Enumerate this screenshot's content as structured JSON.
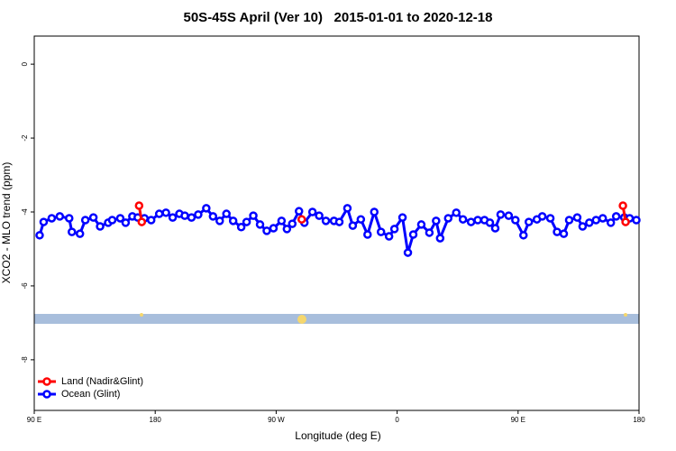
{
  "chart_data": {
    "type": "line",
    "title": "50S-45S April (Ver 10)   2015-01-01 to 2020-12-18",
    "x_label": "Longitude (deg E)",
    "y_label": "XCO2 - MLO trend (ppm)",
    "xlim": [
      90,
      540
    ],
    "ylim": [
      -9.37,
      0.76
    ],
    "xticks": [
      {
        "value": 90,
        "label": "90 E"
      },
      180,
      {
        "value": 270,
        "label": "90 W"
      },
      {
        "value": 360,
        "label": "0"
      },
      {
        "value": 450,
        "label": "90 E"
      },
      {
        "value": 540,
        "label": "180"
      }
    ],
    "yticks": [
      0,
      -2,
      -4,
      -6,
      -8
    ],
    "legend": "bottom-left",
    "series": [
      {
        "name": "Land (Nadir&Glint)",
        "color": "#ff0000",
        "x": [
          168,
          170,
          250,
          289,
          400,
          528,
          530
        ],
        "values": [
          -3.83,
          -4.27,
          null,
          -4.2,
          null,
          -3.83,
          -4.27
        ]
      },
      {
        "name": "Ocean (Glint)",
        "color": "#0000ff",
        "x": [
          94,
          97,
          103,
          109,
          116,
          118,
          124,
          128,
          134,
          139,
          145,
          148,
          154,
          158,
          163,
          167,
          172,
          177,
          183,
          188,
          193,
          198,
          202,
          207,
          212,
          218,
          223,
          228,
          233,
          238,
          244,
          248,
          253,
          258,
          263,
          268,
          274,
          278,
          282,
          287,
          291,
          297,
          302,
          307,
          313,
          317,
          323,
          327,
          333,
          338,
          343,
          348,
          354,
          358,
          364,
          368,
          372,
          378,
          384,
          389,
          392,
          398,
          404,
          409,
          415,
          420,
          425,
          429,
          433,
          437,
          443,
          448,
          454,
          458,
          464,
          468,
          474,
          479,
          484,
          488,
          494,
          498,
          503,
          508,
          513,
          519,
          523,
          529,
          533,
          538
        ],
        "values": [
          -4.63,
          -4.27,
          -4.17,
          -4.12,
          -4.17,
          -4.54,
          -4.59,
          -4.22,
          -4.15,
          -4.39,
          -4.29,
          -4.22,
          -4.17,
          -4.29,
          -4.12,
          -4.15,
          -4.17,
          -4.22,
          -4.05,
          -4.02,
          -4.15,
          -4.05,
          -4.1,
          -4.15,
          -4.07,
          -3.9,
          -4.12,
          -4.24,
          -4.05,
          -4.24,
          -4.41,
          -4.27,
          -4.1,
          -4.34,
          -4.51,
          -4.44,
          -4.24,
          -4.46,
          -4.32,
          -3.98,
          -4.29,
          -4.0,
          -4.1,
          -4.24,
          -4.24,
          -4.27,
          -3.9,
          -4.37,
          -4.2,
          -4.61,
          -4.0,
          -4.54,
          -4.66,
          -4.46,
          -4.15,
          -5.1,
          -4.61,
          -4.34,
          -4.56,
          -4.24,
          -4.71,
          -4.17,
          -4.02,
          -4.2,
          -4.27,
          -4.22,
          -4.22,
          -4.29,
          -4.44,
          -4.07,
          -4.1,
          -4.22,
          -4.63,
          -4.27,
          -4.2,
          -4.12,
          -4.17,
          -4.54,
          -4.59,
          -4.22,
          -4.15,
          -4.39,
          -4.29,
          -4.22,
          -4.17,
          -4.29,
          -4.12,
          -4.15,
          -4.17,
          -4.22
        ]
      }
    ]
  }
}
